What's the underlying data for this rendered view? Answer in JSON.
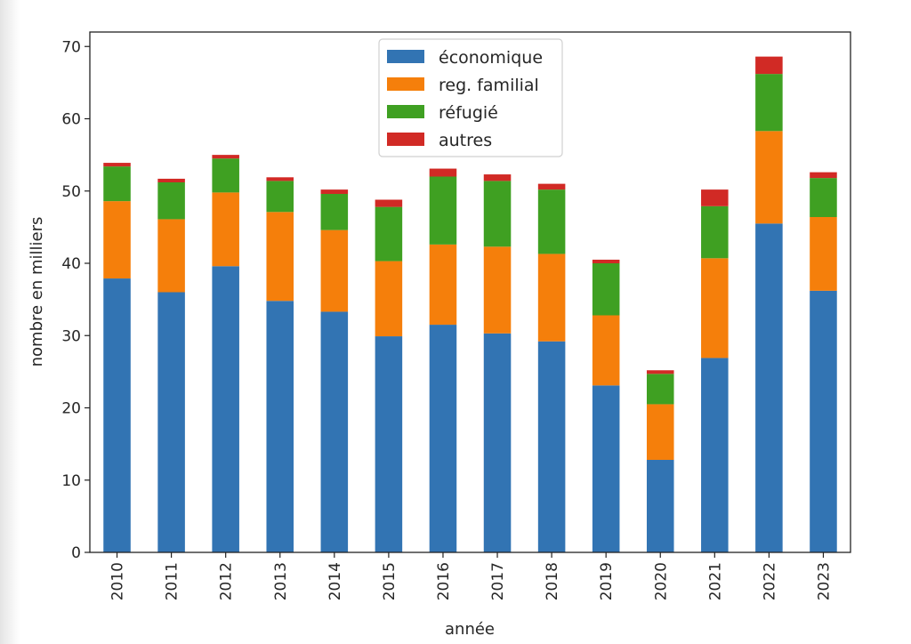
{
  "chart_data": {
    "type": "bar",
    "stacked": true,
    "title": "",
    "xlabel": "année",
    "ylabel": "nombre en milliers",
    "ylim": [
      0,
      72
    ],
    "yticks": [
      0,
      10,
      20,
      30,
      40,
      50,
      60,
      70
    ],
    "grid": false,
    "legend_position": "top-center",
    "categories": [
      "2010",
      "2011",
      "2012",
      "2013",
      "2014",
      "2015",
      "2016",
      "2017",
      "2018",
      "2019",
      "2020",
      "2021",
      "2022",
      "2023"
    ],
    "series": [
      {
        "name": "économique",
        "color": "#3274b3",
        "values": [
          37.9,
          36.0,
          39.6,
          34.8,
          33.3,
          29.9,
          31.5,
          30.3,
          29.2,
          23.1,
          12.8,
          26.9,
          45.5,
          36.2
        ]
      },
      {
        "name": "reg. familial",
        "color": "#f57f0b",
        "values": [
          10.7,
          10.1,
          10.2,
          12.3,
          11.3,
          10.4,
          11.1,
          12.0,
          12.1,
          9.7,
          7.7,
          13.8,
          12.8,
          10.2
        ]
      },
      {
        "name": "réfugié",
        "color": "#3fa022",
        "values": [
          4.8,
          5.1,
          4.7,
          4.3,
          5.0,
          7.5,
          9.4,
          9.1,
          8.9,
          7.2,
          4.2,
          7.2,
          7.9,
          5.4
        ]
      },
      {
        "name": "autres",
        "color": "#d12a25",
        "values": [
          0.5,
          0.5,
          0.5,
          0.5,
          0.6,
          1.0,
          1.1,
          0.9,
          0.8,
          0.5,
          0.5,
          2.3,
          2.4,
          0.8
        ]
      }
    ]
  }
}
